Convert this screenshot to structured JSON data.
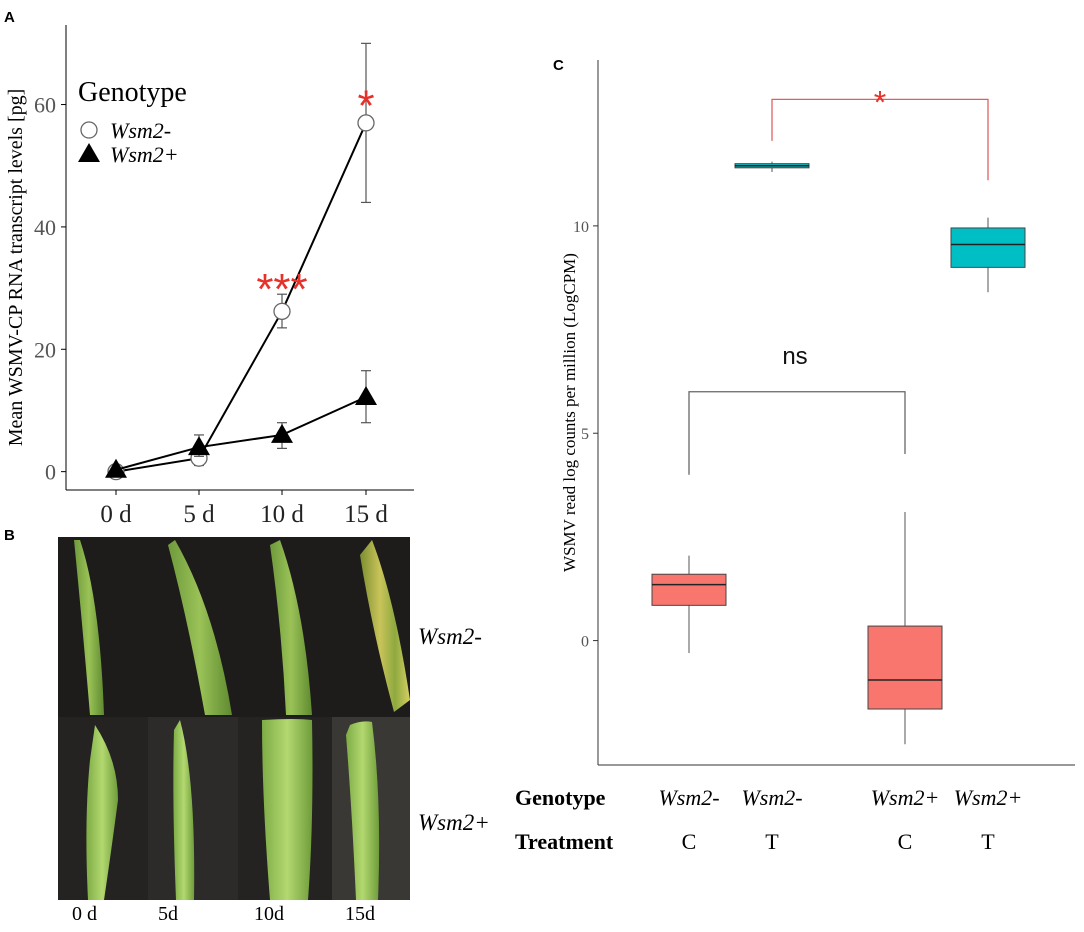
{
  "panel_labels": {
    "a": "A",
    "b": "B",
    "c": "C"
  },
  "colors": {
    "star": "#e8302a",
    "bracket_sig": "#e06060",
    "bracket_ns": "#666666",
    "box_control": "#f8766d",
    "box_treatment": "#00bfc4",
    "axis": "#333333"
  },
  "chart_data": [
    {
      "type": "line",
      "panel": "A",
      "title": "",
      "xlabel": "",
      "ylabel": "Mean WSMV-CP RNA transcript levels [pg]",
      "categories": [
        "0 d",
        "5 d",
        "10 d",
        "15 d"
      ],
      "ylim": [
        -3,
        73
      ],
      "yticks": [
        0,
        20,
        40,
        60
      ],
      "legend": {
        "title": "Genotype",
        "placement": "top-left",
        "items": [
          {
            "label": "Wsm2-",
            "marker": "open-circle"
          },
          {
            "label": "Wsm2+",
            "marker": "filled-triangle"
          }
        ]
      },
      "series": [
        {
          "name": "Wsm2-",
          "marker": "open-circle",
          "values": [
            0,
            2.2,
            26.2,
            57
          ],
          "err_low": [
            0,
            1.0,
            23.5,
            44
          ],
          "err_high": [
            0,
            3.5,
            29,
            70
          ]
        },
        {
          "name": "Wsm2+",
          "marker": "filled-triangle",
          "values": [
            0.3,
            4,
            6,
            12.2
          ],
          "err_low": [
            0.3,
            2.5,
            3.8,
            8
          ],
          "err_high": [
            0.3,
            6,
            8,
            16.5
          ]
        }
      ],
      "annotations": [
        {
          "text": "***",
          "at": "10 d",
          "y": 31
        },
        {
          "text": "*",
          "at": "15 d",
          "y": 61
        }
      ]
    },
    {
      "type": "boxplot",
      "panel": "C",
      "title": "",
      "xlabel": "",
      "ylabel": "WSMV read log counts per million (LogCPM)",
      "ylim": [
        -3,
        14
      ],
      "yticks": [
        0,
        5,
        10
      ],
      "row_labels": {
        "genotype": "Genotype",
        "treatment": "Treatment"
      },
      "groups": [
        {
          "genotype": "Wsm2-",
          "treatment": "C",
          "min": -0.3,
          "q1": 0.85,
          "median": 1.35,
          "q3": 1.6,
          "max": 2.05,
          "fill": "control"
        },
        {
          "genotype": "Wsm2-",
          "treatment": "T",
          "min": 11.3,
          "q1": 11.4,
          "median": 11.45,
          "q3": 11.5,
          "max": 11.55,
          "fill": "treatment"
        },
        {
          "genotype": "Wsm2+",
          "treatment": "C",
          "min": -2.5,
          "q1": -1.65,
          "median": -0.95,
          "q3": 0.35,
          "max": 3.1,
          "fill": "control"
        },
        {
          "genotype": "Wsm2+",
          "treatment": "T",
          "min": 8.4,
          "q1": 9.0,
          "median": 9.55,
          "q3": 9.95,
          "max": 10.2,
          "fill": "treatment"
        }
      ],
      "brackets": [
        {
          "from": 1,
          "to": 3,
          "label": "*",
          "significant": true
        },
        {
          "from": 0,
          "to": 2,
          "label": "ns",
          "significant": false
        }
      ]
    }
  ],
  "photos": {
    "row_labels": [
      "Wsm2-",
      "Wsm2+"
    ],
    "column_labels": [
      "0 d",
      "5d",
      "10d",
      "15d"
    ]
  }
}
